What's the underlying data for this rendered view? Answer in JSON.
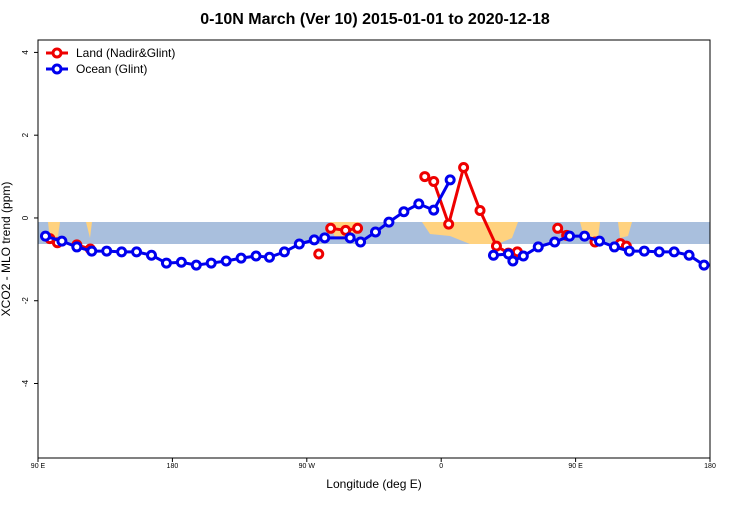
{
  "chart_data": {
    "type": "line",
    "title": "0-10N March (Ver 10)   2015-01-01 to 2020-12-18",
    "x_label": "Longitude (deg E)",
    "y_label": "XCO2 - MLO trend (ppm)",
    "xlim": [
      90,
      540
    ],
    "ylim": [
      -5.8,
      4.3
    ],
    "xticks": [
      {
        "value": 90,
        "label": "90 E"
      },
      180,
      {
        "value": 270,
        "label": "90 W"
      },
      {
        "value": 360,
        "label": "0"
      },
      {
        "value": 450,
        "label": "90 E"
      },
      {
        "value": 540,
        "label": "180"
      }
    ],
    "yticks": [
      -4,
      -2,
      0,
      2,
      4
    ],
    "legend": "top-left",
    "series": [
      {
        "name": "Land (Nadir&Glint)",
        "color": "#ee0000",
        "x": [
          98,
          103,
          null,
          116,
          125,
          null,
          278,
          null,
          286,
          296,
          304,
          null,
          349,
          355,
          365,
          375,
          386,
          397,
          405,
          411,
          null,
          438,
          444,
          null,
          463,
          null,
          480,
          484
        ],
        "values": [
          -0.5,
          -0.6,
          null,
          -0.65,
          -0.75,
          null,
          -0.87,
          null,
          -0.25,
          -0.3,
          -0.25,
          null,
          1.0,
          0.88,
          -0.15,
          1.22,
          0.18,
          -0.68,
          -0.85,
          -0.82,
          null,
          -0.25,
          -0.42,
          null,
          -0.58,
          null,
          -0.62,
          -0.68
        ]
      },
      {
        "name": "Ocean (Glint)",
        "color": "#0000ee",
        "x": [
          95,
          106,
          116,
          126,
          136,
          146,
          156,
          166,
          176,
          186,
          196,
          206,
          216,
          226,
          236,
          245,
          255,
          265,
          275,
          282,
          299,
          306,
          316,
          325,
          335,
          345,
          355,
          366,
          null,
          395,
          405,
          408,
          415,
          425,
          436,
          446,
          456,
          466,
          476,
          486,
          496,
          506,
          516,
          526,
          536
        ],
        "values": [
          -0.44,
          -0.56,
          -0.7,
          -0.8,
          -0.8,
          -0.82,
          -0.82,
          -0.9,
          -1.09,
          -1.07,
          -1.14,
          -1.09,
          -1.04,
          -0.97,
          -0.92,
          -0.95,
          -0.82,
          -0.63,
          -0.53,
          -0.48,
          -0.48,
          -0.58,
          -0.34,
          -0.1,
          0.15,
          0.34,
          0.19,
          0.92,
          null,
          -0.9,
          -0.87,
          -1.04,
          -0.92,
          -0.7,
          -0.58,
          -0.44,
          -0.44,
          -0.56,
          -0.7,
          -0.8,
          -0.8,
          -0.82,
          -0.82,
          -0.9,
          -1.14
        ]
      }
    ]
  }
}
